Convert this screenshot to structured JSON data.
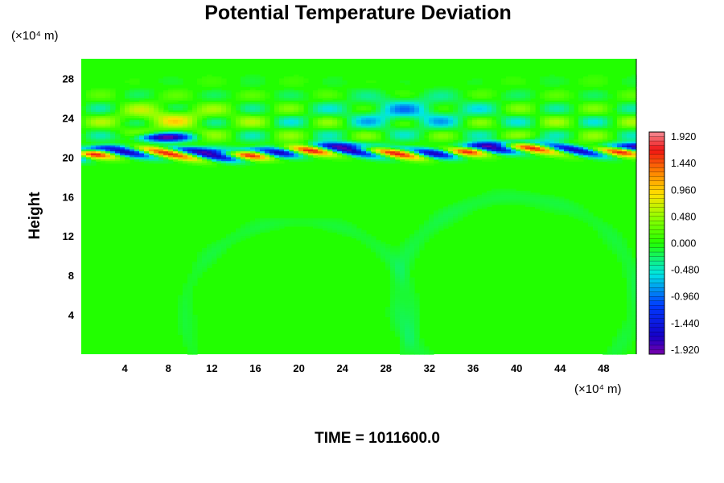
{
  "chart_data": {
    "type": "heatmap",
    "title": "Potential Temperature Deviation",
    "ylabel": "Height",
    "x_unit": "(×10⁴ m)",
    "y_unit": "(×10⁴ m)",
    "xlim": [
      0,
      51
    ],
    "ylim": [
      0,
      30
    ],
    "x_ticks": [
      4,
      8,
      12,
      16,
      20,
      24,
      28,
      32,
      36,
      40,
      44,
      48
    ],
    "y_ticks": [
      4,
      8,
      12,
      16,
      20,
      24,
      28
    ],
    "colorbar": {
      "range": [
        -2.0,
        2.0
      ],
      "tick_values": [
        1.92,
        1.44,
        0.96,
        0.48,
        0.0,
        -0.48,
        -0.96,
        -1.44,
        -1.92
      ],
      "tick_labels": [
        "1.920",
        "1.440",
        "0.960",
        "0.480",
        "0.000",
        "-0.480",
        "-0.960",
        "-1.440",
        "-1.920"
      ],
      "levels": 50
    },
    "features": [
      {
        "x_range": [
          0,
          51
        ],
        "y_range": [
          19.8,
          21.2
        ],
        "value_min": -1.9,
        "value_max": 1.9
      },
      {
        "x_range": [
          5,
          10
        ],
        "y_range": [
          21.5,
          22.5
        ],
        "value": -1.8
      },
      {
        "x_range": [
          0,
          51
        ],
        "y_range": [
          22,
          28
        ],
        "value_min": -0.7,
        "value_max": 0.6
      },
      {
        "x_range": [
          0,
          51
        ],
        "y_range": [
          0,
          19.5
        ],
        "value": 0.05
      }
    ],
    "footer": "TIME = 1011600.0"
  },
  "colors": {
    "background_field": "#22ff00",
    "frame": "#000000"
  }
}
